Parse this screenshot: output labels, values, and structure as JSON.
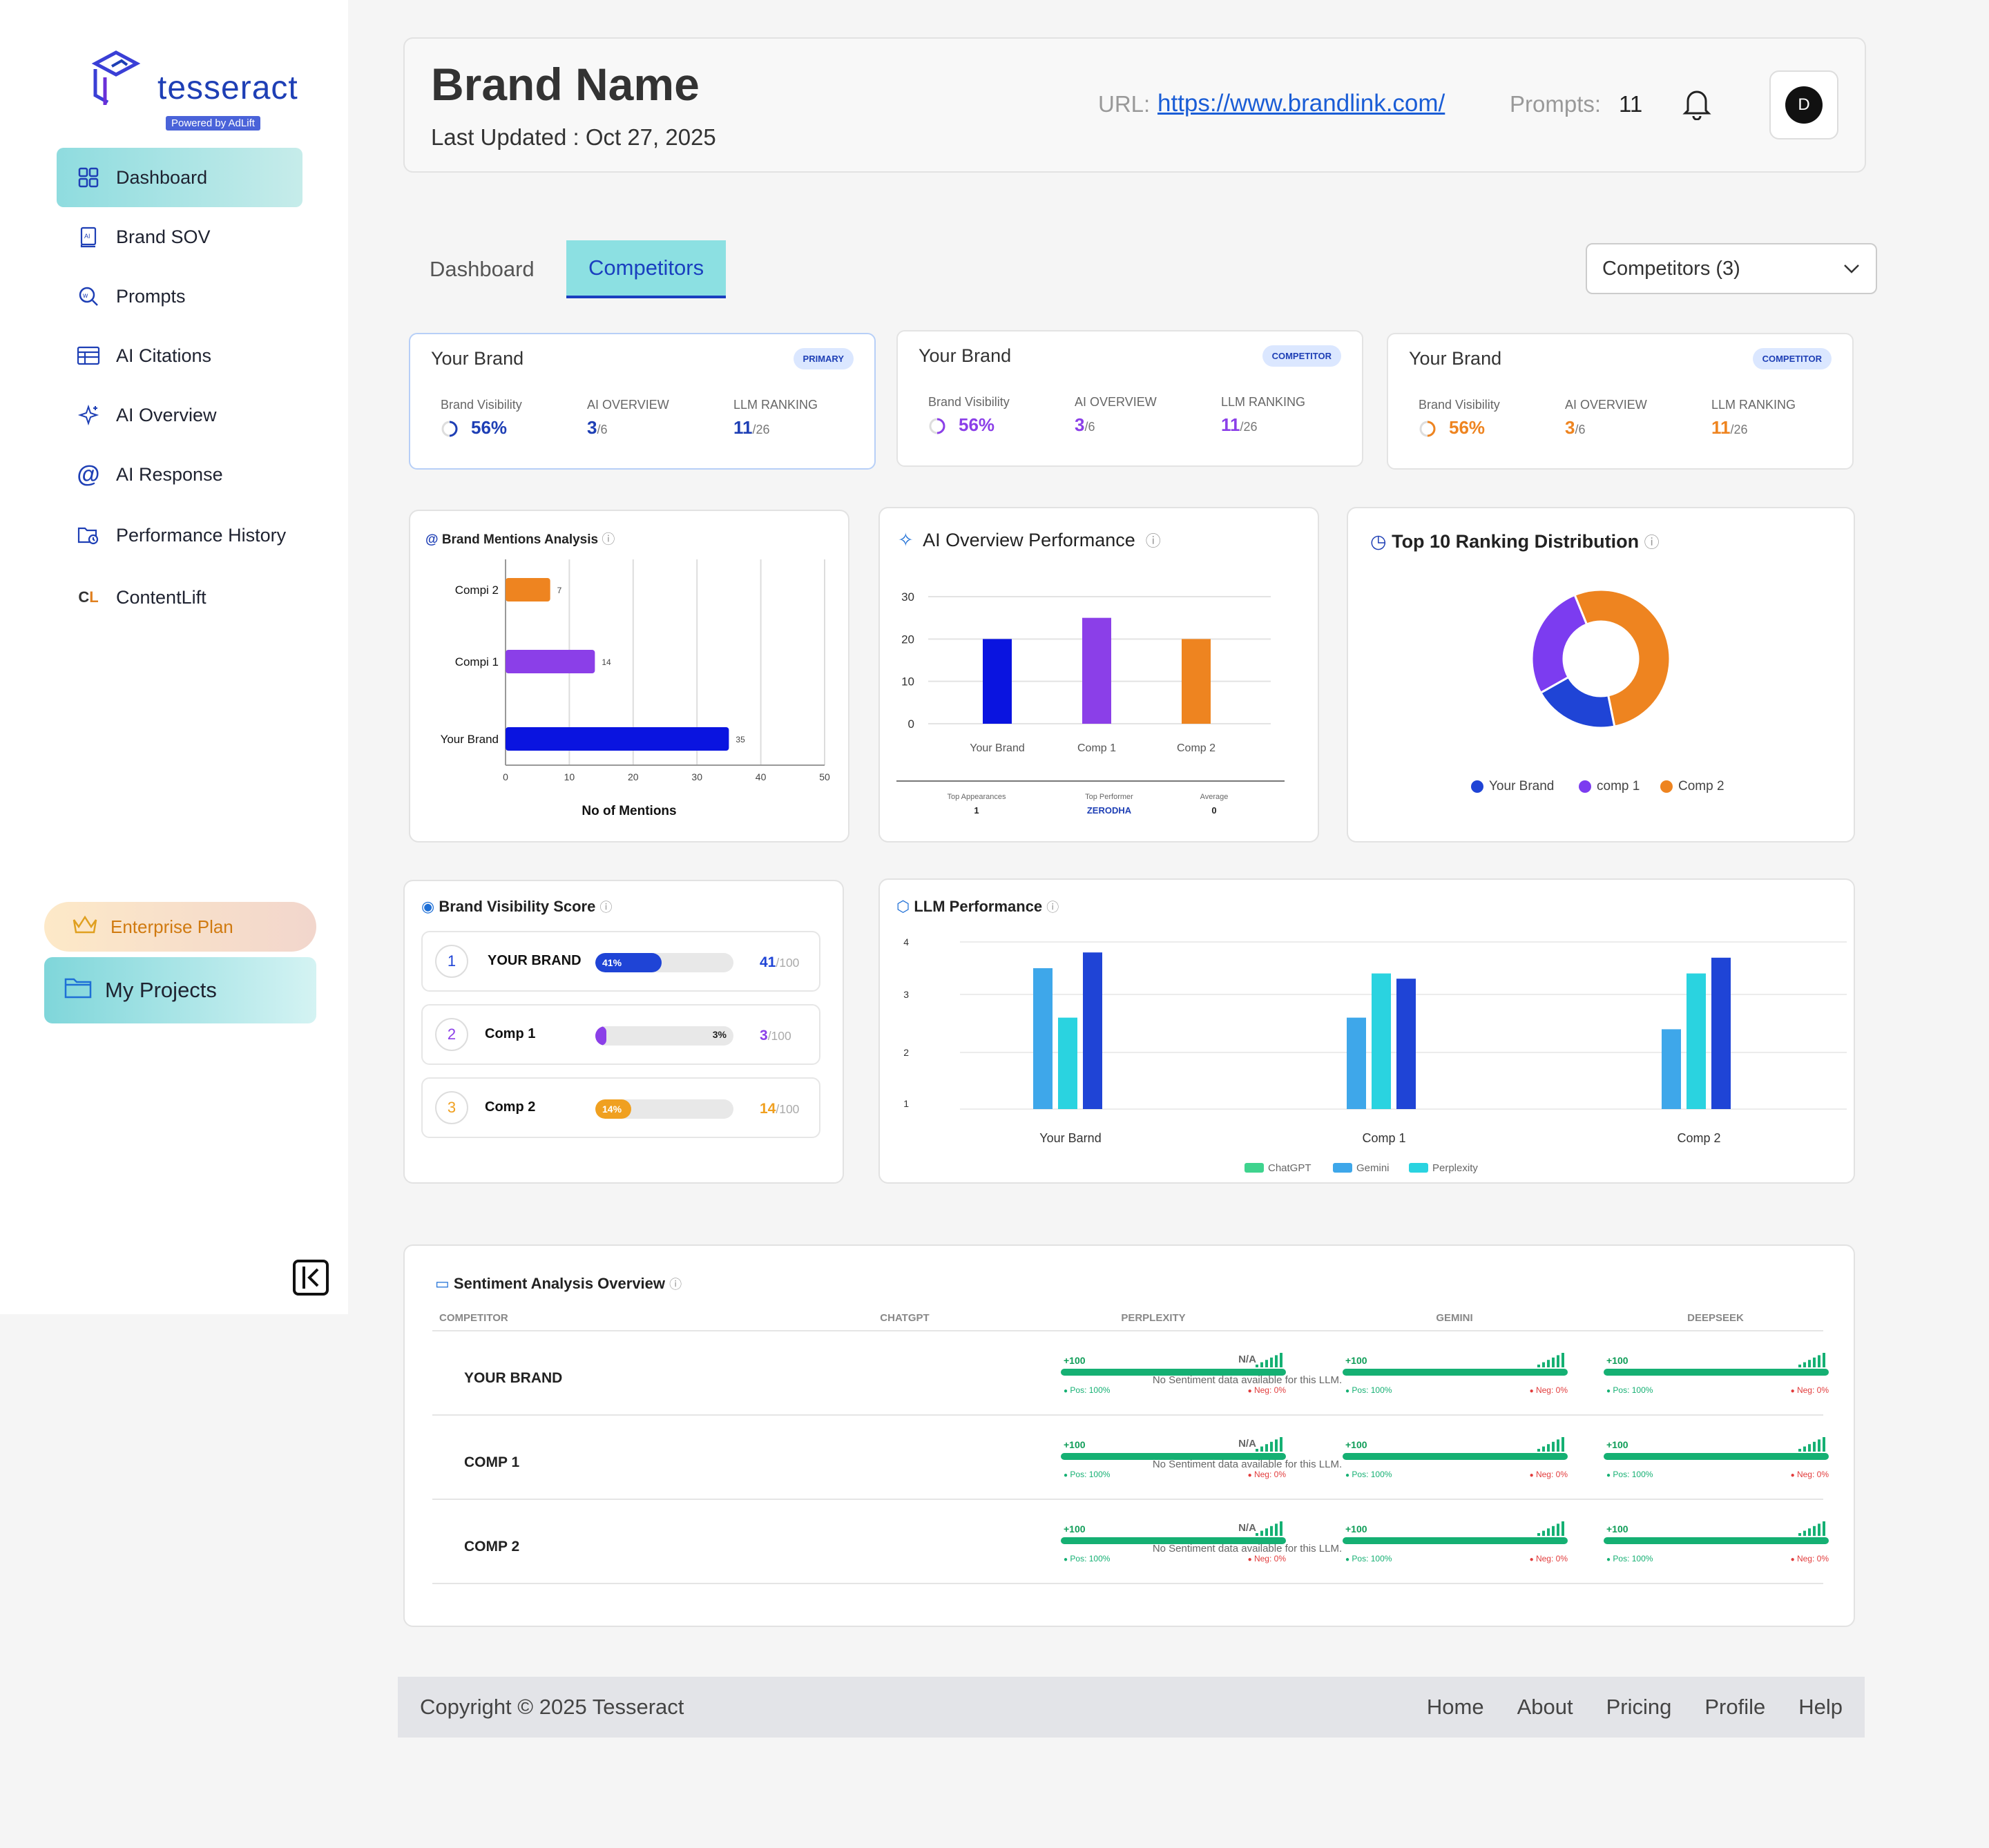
{
  "app": {
    "logo_text": "tesseract",
    "logo_badge": "Powered by AdLift"
  },
  "sidebar": {
    "items": [
      {
        "label": "Dashboard",
        "icon": "grid-icon"
      },
      {
        "label": "Brand SOV",
        "icon": "book-icon"
      },
      {
        "label": "Prompts",
        "icon": "search-icon"
      },
      {
        "label": "AI Citations",
        "icon": "table-icon"
      },
      {
        "label": "AI Overview",
        "icon": "sparkle-icon"
      },
      {
        "label": "AI Response",
        "icon": "at-icon"
      },
      {
        "label": "Performance History",
        "icon": "history-folder-icon"
      },
      {
        "label": "ContentLift",
        "icon": "contentlift-icon"
      }
    ],
    "plan_label": "Enterprise Plan",
    "projects_label": "My Projects"
  },
  "header": {
    "brand_name": "Brand Name",
    "last_updated": "Last Updated : Oct 27, 2025",
    "url_label": "URL:",
    "url": "https://www.brandlink.com/",
    "prompts_label": "Prompts:",
    "prompts_value": "11",
    "avatar_initial": "D"
  },
  "tabs": [
    "Dashboard",
    "Competitors"
  ],
  "competitor_select": "Competitors (3)",
  "brand_cards": [
    {
      "title": "Your Brand",
      "badge": "PRIMARY",
      "visibility_label": "Brand Visibility",
      "visibility": "56%",
      "ai_label": "AI OVERVIEW",
      "ai_value": "3",
      "ai_total": "/6",
      "llm_label": "LLM RANKING",
      "llm_value": "11",
      "llm_total": "/26",
      "color": "#1e3fb5"
    },
    {
      "title": "Your Brand",
      "badge": "COMPETITOR",
      "visibility_label": "Brand Visibility",
      "visibility": "56%",
      "ai_label": "AI OVERVIEW",
      "ai_value": "3",
      "ai_total": "/6",
      "llm_label": "LLM RANKING",
      "llm_value": "11",
      "llm_total": "/26",
      "color": "#8b3fe8"
    },
    {
      "title": "Your Brand",
      "badge": "COMPETITOR",
      "visibility_label": "Brand Visibility",
      "visibility": "56%",
      "ai_label": "AI OVERVIEW",
      "ai_value": "3",
      "ai_total": "/6",
      "llm_label": "LLM RANKING",
      "llm_value": "11",
      "llm_total": "/26",
      "color": "#ee8420"
    }
  ],
  "chart_data": [
    {
      "type": "bar",
      "orientation": "horizontal",
      "title": "Brand Mentions Analysis",
      "xlabel": "No of Mentions",
      "categories": [
        "Compi 2",
        "Compi 1",
        "Your Brand"
      ],
      "values": [
        7,
        14,
        35
      ],
      "colors": [
        "#ee8420",
        "#8b3fe8",
        "#0a14e0"
      ],
      "xlim": [
        0,
        50
      ],
      "xticks": [
        0,
        10,
        20,
        30,
        40,
        50
      ]
    },
    {
      "type": "bar",
      "title": "AI Overview Performance",
      "categories": [
        "Your Brand",
        "Comp 1",
        "Comp 2"
      ],
      "values": [
        20,
        25,
        20
      ],
      "colors": [
        "#0a14e0",
        "#8b3fe8",
        "#ee8420"
      ],
      "ylim": [
        0,
        30
      ],
      "yticks": [
        0,
        10,
        20,
        30
      ],
      "stats": [
        {
          "label": "Top Appearances",
          "value": "1"
        },
        {
          "label": "Top Performer",
          "value": "ZERODHA"
        },
        {
          "label": "Average",
          "value": "0"
        }
      ]
    },
    {
      "type": "pie",
      "title": "Top 10 Ranking Distribution",
      "labels": [
        "Your Brand",
        "comp 1",
        "Comp 2"
      ],
      "values": [
        20,
        27,
        53
      ],
      "colors": [
        "#1f44d6",
        "#7c3cf0",
        "#ee8420"
      ]
    },
    {
      "type": "bar",
      "title": "LLM Performance",
      "categories": [
        "Your Barnd",
        "Comp 1",
        "Comp 2"
      ],
      "ylim": [
        1,
        4
      ],
      "yticks": [
        1,
        2,
        3,
        4
      ],
      "series": [
        {
          "name": "ChatGPT",
          "color": "#3fd38e",
          "values": [
            null,
            null,
            null
          ]
        },
        {
          "name": "Gemini",
          "color": "#3ea7ea",
          "values": [
            3.5,
            2.6,
            2.4
          ]
        },
        {
          "name": "Perplexity",
          "color": "#2ad3e0",
          "values": [
            2.6,
            3.4,
            3.4
          ]
        },
        {
          "name": "",
          "color": "#1f44d6",
          "values": [
            3.8,
            3.3,
            3.7
          ]
        }
      ]
    }
  ],
  "brand_visibility": {
    "title": "Brand Visibility Score",
    "rows": [
      {
        "rank": "1",
        "name": "YOUR BRAND",
        "pct": 41,
        "pct_label": "41%",
        "score": "41",
        "total": "/100",
        "color": "#1f44d6"
      },
      {
        "rank": "2",
        "name": "Comp 1",
        "pct": 3,
        "pct_label": "3%",
        "score": "3",
        "total": "/100",
        "color": "#8b3fe8"
      },
      {
        "rank": "3",
        "name": "Comp 2",
        "pct": 14,
        "pct_label": "14%",
        "score": "14",
        "total": "/100",
        "color": "#f0a020"
      }
    ]
  },
  "sentiment": {
    "title": "Sentiment Analysis Overview",
    "headers": [
      "COMPETITOR",
      "CHATGPT",
      "PERPLEXITY",
      "GEMINI",
      "DEEPSEEK"
    ],
    "rows": [
      {
        "name": "YOUR BRAND",
        "chatgpt_na": "N/A",
        "chatgpt_msg": "No Sentiment data available for this LLM.",
        "cells": [
          {
            "score": "+100",
            "pos": "Pos: 100%",
            "neg": "Neg: 0%"
          },
          {
            "score": "+100",
            "pos": "Pos: 100%",
            "neg": "Neg: 0%"
          },
          {
            "score": "+100",
            "pos": "Pos: 100%",
            "neg": "Neg: 0%"
          }
        ]
      },
      {
        "name": "COMP 1",
        "chatgpt_na": "N/A",
        "chatgpt_msg": "No Sentiment data available for this LLM.",
        "cells": [
          {
            "score": "+100",
            "pos": "Pos: 100%",
            "neg": "Neg: 0%"
          },
          {
            "score": "+100",
            "pos": "Pos: 100%",
            "neg": "Neg: 0%"
          },
          {
            "score": "+100",
            "pos": "Pos: 100%",
            "neg": "Neg: 0%"
          }
        ]
      },
      {
        "name": "COMP 2",
        "chatgpt_na": "N/A",
        "chatgpt_msg": "No Sentiment data available for this LLM.",
        "cells": [
          {
            "score": "+100",
            "pos": "Pos: 100%",
            "neg": "Neg: 0%"
          },
          {
            "score": "+100",
            "pos": "Pos: 100%",
            "neg": "Neg: 0%"
          },
          {
            "score": "+100",
            "pos": "Pos: 100%",
            "neg": "Neg: 0%"
          }
        ]
      }
    ]
  },
  "footer": {
    "copyright": "Copyright © 2025 Tesseract",
    "links": [
      "Home",
      "About",
      "Pricing",
      "Profile",
      "Help"
    ]
  }
}
